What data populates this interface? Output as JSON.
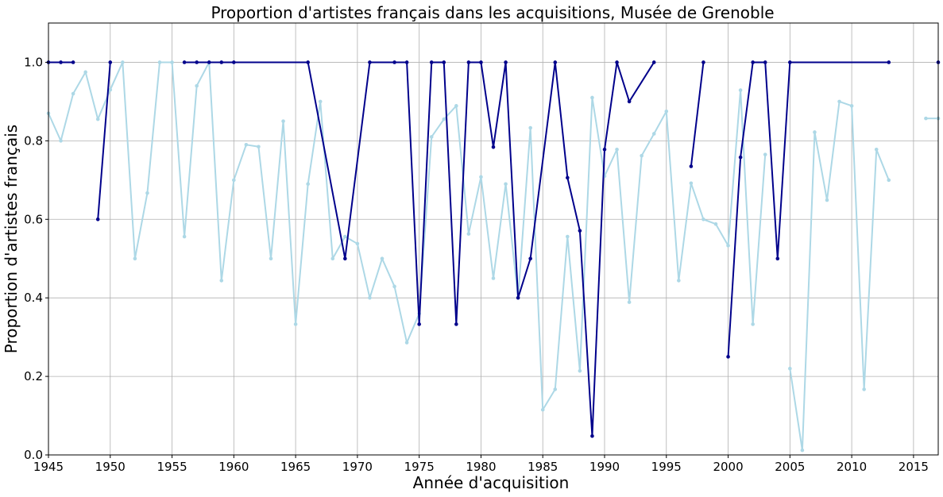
{
  "chart_data": {
    "type": "line",
    "title": "Proportion d'artistes français dans les acquisitions, Musée de Grenoble",
    "xlabel": "Année d'acquisition",
    "ylabel": "Proportion d'artistes français",
    "xlim": [
      1945,
      2017
    ],
    "ylim": [
      0,
      1.1
    ],
    "x_ticks": [
      1945,
      1950,
      1955,
      1960,
      1965,
      1970,
      1975,
      1980,
      1985,
      1990,
      1995,
      2000,
      2005,
      2010,
      2015
    ],
    "y_ticks": [
      0.0,
      0.2,
      0.4,
      0.6,
      0.8,
      1.0
    ],
    "y_tick_labels": [
      "0.0",
      "0.2",
      "0.4",
      "0.6",
      "0.8",
      "1.0"
    ],
    "grid": true,
    "legend": "none",
    "series": [
      {
        "color": "#add8e6",
        "points": [
          [
            1945,
            0.87
          ],
          [
            1946,
            0.8
          ],
          [
            1947,
            0.92
          ],
          [
            1948,
            0.975
          ],
          [
            1949,
            0.855
          ],
          [
            1950,
            0.93
          ],
          [
            1951,
            1.0
          ],
          [
            1952,
            0.5
          ],
          [
            1953,
            0.667
          ],
          [
            1954,
            1.0
          ],
          [
            1955,
            1.0
          ],
          [
            1956,
            0.556
          ],
          [
            1957,
            0.94
          ],
          [
            1958,
            1.0
          ],
          [
            1959,
            0.444
          ],
          [
            1960,
            0.7
          ],
          [
            1961,
            0.79
          ],
          [
            1962,
            0.785
          ],
          [
            1963,
            0.5
          ],
          [
            1964,
            0.85
          ],
          [
            1965,
            0.333
          ],
          [
            1966,
            0.69
          ],
          [
            1967,
            0.9
          ],
          [
            1968,
            0.5
          ],
          [
            1969,
            0.556
          ],
          [
            1970,
            0.538
          ],
          [
            1971,
            0.4
          ],
          [
            1972,
            0.5
          ],
          [
            1973,
            0.429
          ],
          [
            1974,
            0.286
          ],
          [
            1975,
            0.36
          ],
          [
            1976,
            0.81
          ],
          [
            1977,
            0.855
          ],
          [
            1978,
            0.889
          ],
          [
            1979,
            0.563
          ],
          [
            1980,
            0.708
          ],
          [
            1981,
            0.45
          ],
          [
            1982,
            0.69
          ],
          [
            1983,
            0.4
          ],
          [
            1984,
            0.833
          ],
          [
            1985,
            0.115
          ],
          [
            1986,
            0.167
          ],
          [
            1987,
            0.556
          ],
          [
            1988,
            0.214
          ],
          [
            1989,
            0.91
          ],
          [
            1990,
            0.71
          ],
          [
            1991,
            0.778
          ],
          [
            1992,
            0.389
          ],
          [
            1993,
            0.762
          ],
          [
            1994,
            0.818
          ],
          [
            1995,
            0.875
          ],
          [
            1996,
            0.444
          ],
          [
            1997,
            0.692
          ],
          [
            1998,
            0.6
          ],
          [
            1999,
            0.588
          ],
          [
            2000,
            0.533
          ],
          [
            2001,
            0.929
          ],
          [
            2002,
            0.333
          ],
          [
            2003,
            0.765
          ],
          null,
          [
            2005,
            0.22
          ],
          [
            2006,
            0.012
          ],
          [
            2007,
            0.822
          ],
          [
            2008,
            0.649
          ],
          [
            2009,
            0.9
          ],
          [
            2010,
            0.889
          ],
          [
            2011,
            0.167
          ],
          [
            2012,
            0.778
          ],
          [
            2013,
            0.7
          ],
          null,
          [
            2016,
            0.857
          ],
          [
            2017,
            0.857
          ]
        ]
      },
      {
        "color": "#00008b",
        "points": [
          [
            1945,
            1.0
          ],
          [
            1946,
            1.0
          ],
          [
            1947,
            1.0
          ],
          null,
          [
            1949,
            0.6
          ],
          [
            1950,
            1.0
          ],
          null,
          [
            1956,
            1.0
          ],
          [
            1957,
            1.0
          ],
          [
            1958,
            1.0
          ],
          [
            1959,
            1.0
          ],
          [
            1960,
            1.0
          ],
          [
            1966,
            1.0
          ],
          [
            1969,
            0.5
          ],
          [
            1971,
            1.0
          ],
          [
            1973,
            1.0
          ],
          [
            1974,
            1.0
          ],
          [
            1975,
            0.333
          ],
          [
            1976,
            1.0
          ],
          [
            1977,
            1.0
          ],
          [
            1978,
            0.333
          ],
          [
            1979,
            1.0
          ],
          [
            1980,
            1.0
          ],
          [
            1981,
            0.784
          ],
          [
            1982,
            1.0
          ],
          [
            1983,
            0.4
          ],
          [
            1984,
            0.5
          ],
          [
            1986,
            1.0
          ],
          [
            1987,
            0.706
          ],
          [
            1988,
            0.571
          ],
          [
            1989,
            0.048
          ],
          [
            1990,
            0.778
          ],
          [
            1991,
            1.0
          ],
          [
            1992,
            0.9
          ],
          [
            1994,
            1.0
          ],
          null,
          [
            1997,
            0.735
          ],
          [
            1998,
            1.0
          ],
          null,
          [
            2000,
            0.25
          ],
          [
            2001,
            0.758
          ],
          [
            2002,
            1.0
          ],
          [
            2003,
            1.0
          ],
          [
            2004,
            0.5
          ],
          [
            2005,
            1.0
          ],
          [
            2013,
            1.0
          ],
          null,
          [
            2017,
            1.0
          ]
        ]
      }
    ]
  }
}
